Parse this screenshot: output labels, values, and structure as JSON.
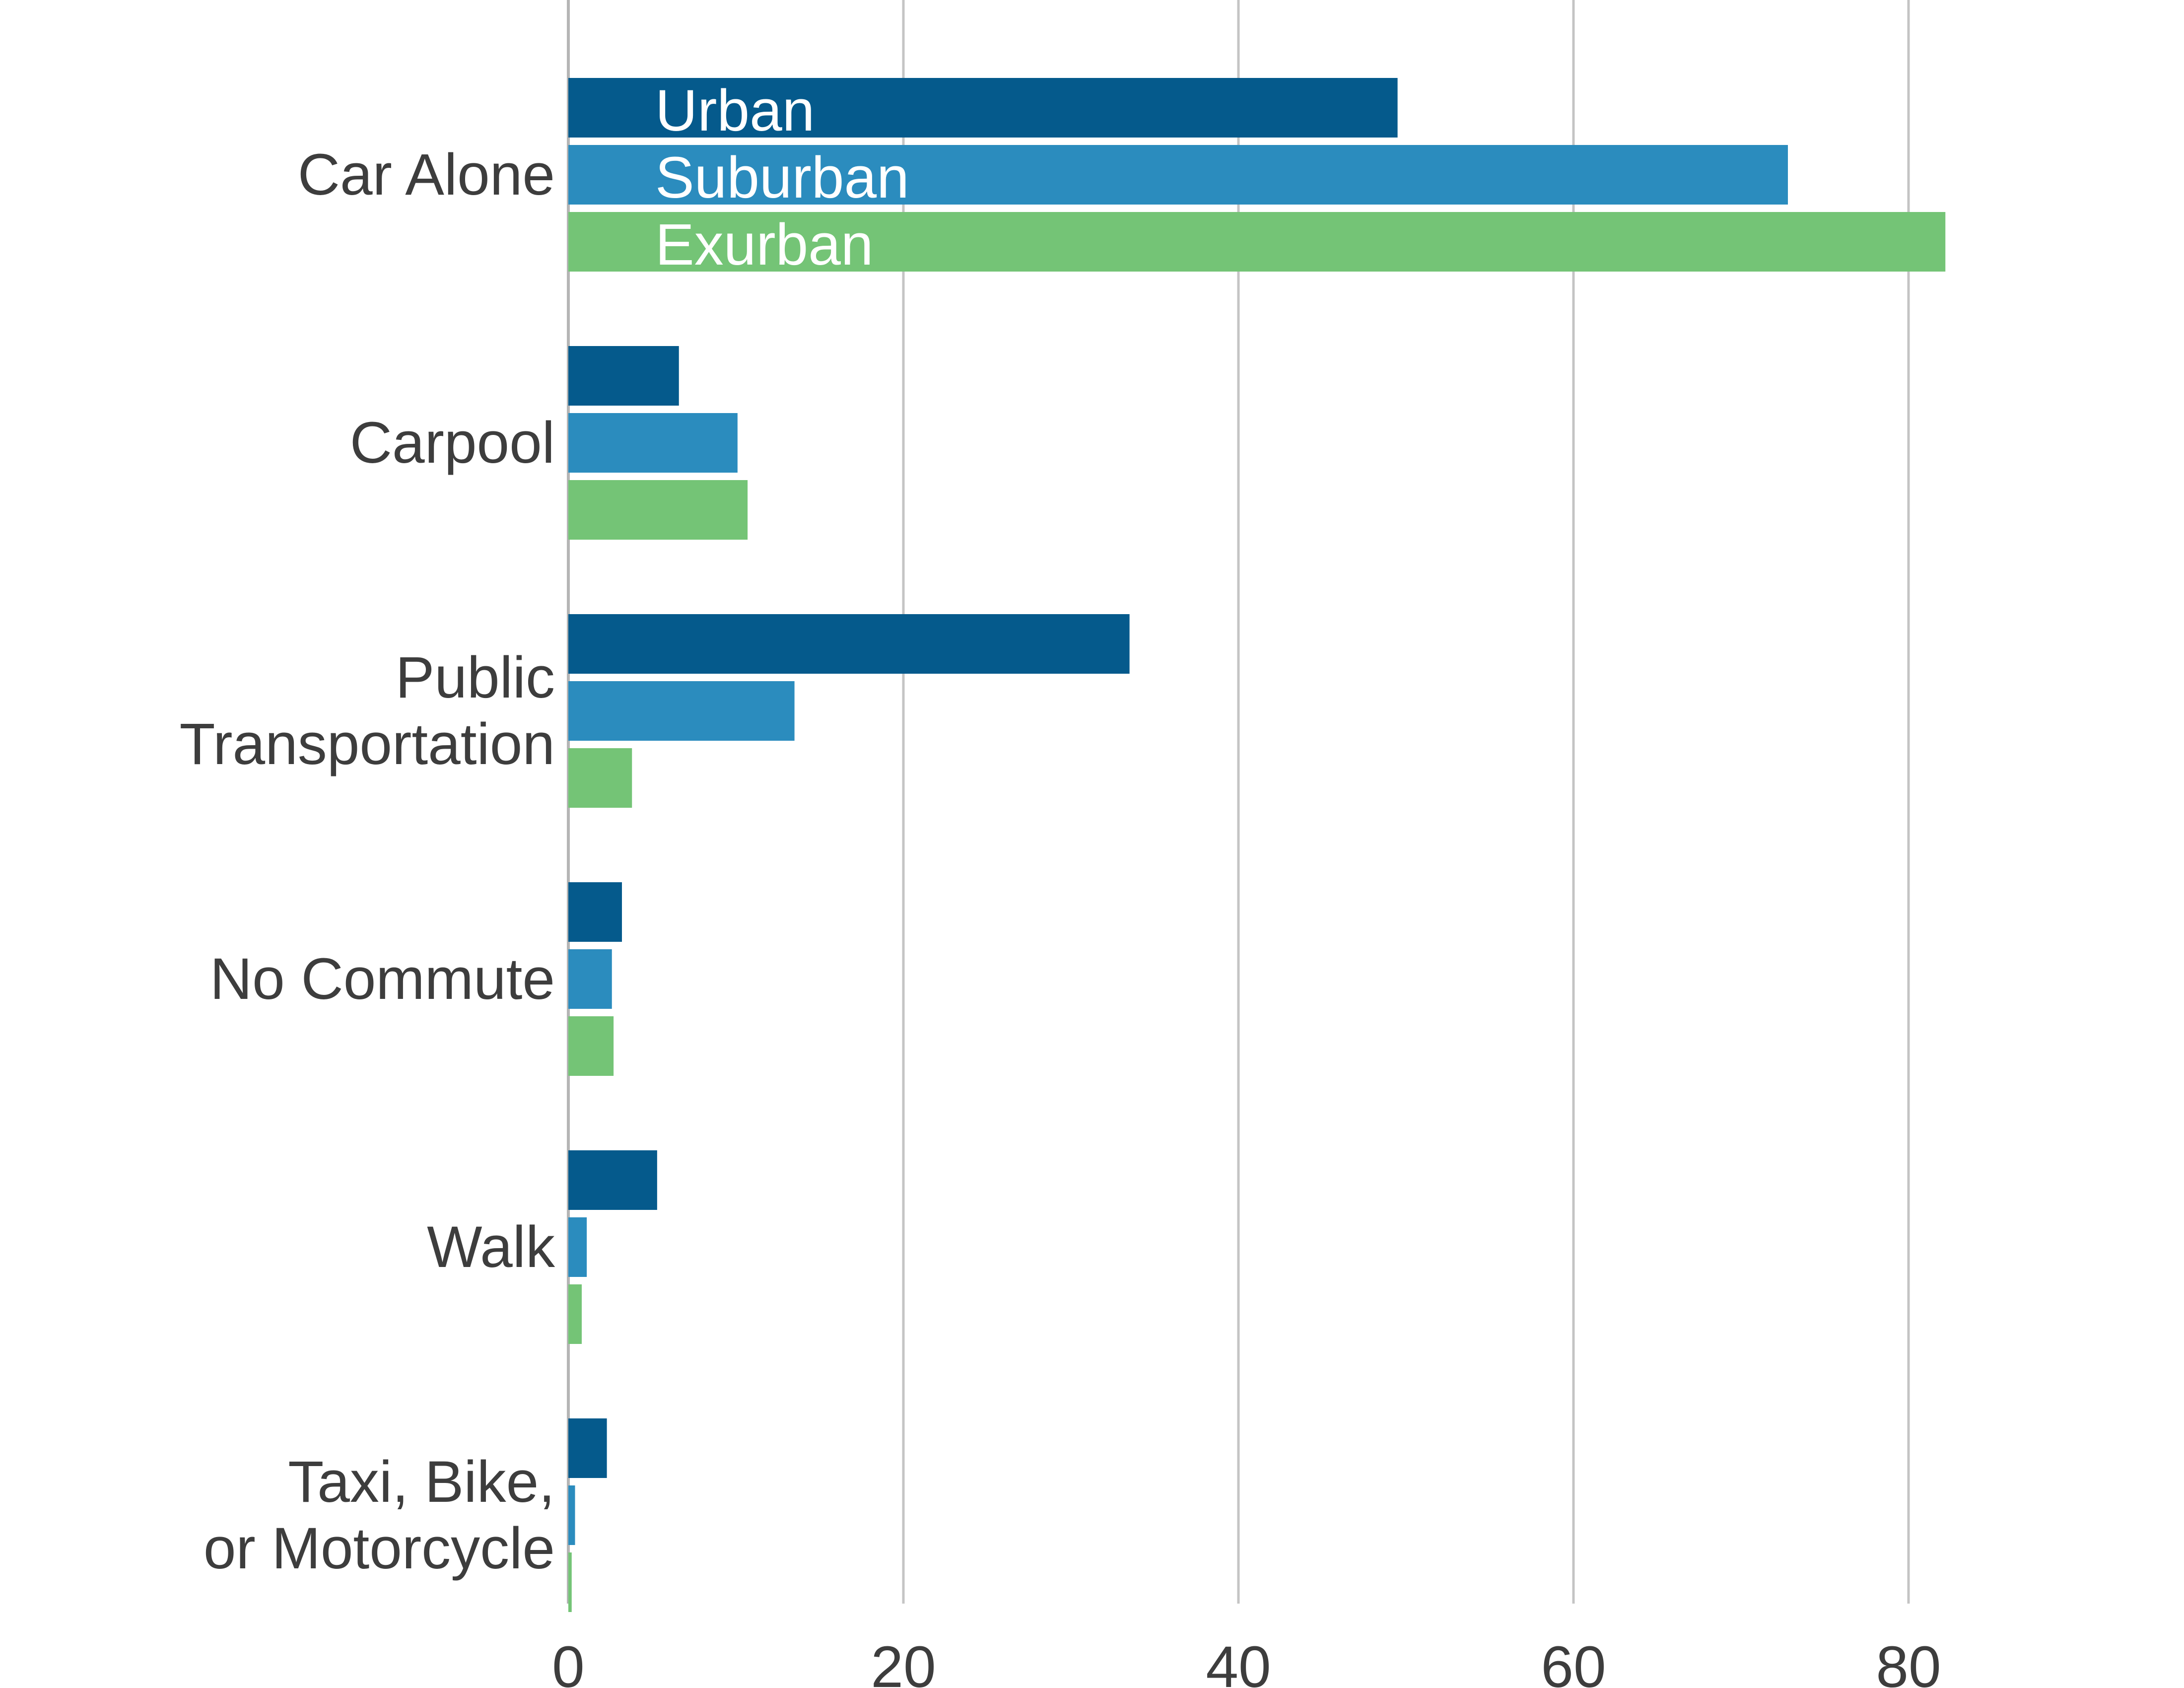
{
  "chart_data": {
    "type": "bar",
    "orientation": "horizontal",
    "categories": [
      [
        "Car Alone"
      ],
      [
        "Carpool"
      ],
      [
        "Public",
        "Transportation"
      ],
      [
        "No Commute"
      ],
      [
        "Walk"
      ],
      [
        "Taxi, Bike,",
        "or Motorcycle"
      ]
    ],
    "series": [
      {
        "name": "Urban",
        "color": "#055a8c",
        "values": [
          49.5,
          6.6,
          33.5,
          3.2,
          5.3,
          2.3
        ]
      },
      {
        "name": "Suburban",
        "color": "#2b8cbe",
        "values": [
          72.8,
          10.1,
          13.5,
          2.6,
          1.1,
          0.4
        ]
      },
      {
        "name": "Exurban",
        "color": "#74c476",
        "values": [
          82.2,
          10.7,
          3.8,
          2.7,
          0.8,
          0.2
        ]
      }
    ],
    "x_ticks": [
      0,
      20,
      40,
      60,
      80
    ],
    "xlim": [
      0,
      92
    ],
    "grid": true,
    "legend": "inside first category bars",
    "title": "",
    "xlabel": "",
    "ylabel": ""
  }
}
